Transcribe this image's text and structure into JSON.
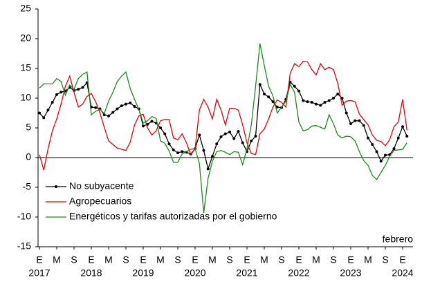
{
  "chart_data": {
    "type": "line",
    "categories": [
      "E",
      null,
      null,
      null,
      "M",
      null,
      null,
      null,
      "S",
      null,
      null,
      null,
      "E",
      null,
      null,
      null,
      "M",
      null,
      null,
      null,
      "S",
      null,
      null,
      null,
      "E",
      null,
      null,
      null,
      "M",
      null,
      null,
      null,
      "S",
      null,
      null,
      null,
      "E",
      null,
      null,
      null,
      "M",
      null,
      null,
      null,
      "S",
      null,
      null,
      null,
      "E",
      null,
      null,
      null,
      "M",
      null,
      null,
      null,
      "S",
      null,
      null,
      null,
      "E",
      null,
      null,
      null,
      "M",
      null,
      null,
      null,
      "S",
      null,
      null,
      null,
      "E",
      null,
      null,
      null,
      "M",
      null,
      null,
      null,
      "S",
      null,
      null,
      null,
      "E",
      null
    ],
    "year_labels": [
      "2017",
      "2018",
      "2019",
      "2020",
      "2021",
      "2022",
      "2023",
      "2024"
    ],
    "annotation": "febrero",
    "ylim": [
      -15,
      25
    ],
    "yticks": [
      -15,
      -10,
      -5,
      0,
      5,
      10,
      15,
      20,
      25
    ],
    "grid": false,
    "legend": "lower left",
    "series": [
      {
        "name": "No subyacente",
        "color": "#000000",
        "markers": true,
        "values": [
          7.5,
          6.7,
          8.0,
          9.3,
          10.6,
          11.0,
          11.2,
          11.8,
          11.3,
          11.5,
          11.8,
          12.6,
          8.5,
          8.4,
          8.2,
          7.2,
          7.0,
          7.6,
          8.2,
          8.7,
          9.0,
          9.2,
          8.6,
          8.2,
          5.3,
          5.6,
          6.1,
          5.8,
          5.0,
          4.0,
          2.3,
          1.3,
          0.8,
          1.0,
          0.9,
          0.6,
          1.5,
          3.8,
          1.2,
          -1.9,
          0.2,
          2.3,
          3.5,
          4.0,
          4.3,
          3.2,
          4.4,
          2.5,
          1.0,
          2.8,
          3.6,
          12.3,
          10.7,
          10.2,
          9.4,
          8.5,
          8.4,
          9.8,
          12.7,
          12.0,
          11.2,
          9.6,
          9.4,
          9.3,
          9.0,
          8.8,
          9.3,
          9.6,
          10.0,
          10.7,
          10.0,
          7.5,
          5.7,
          6.2,
          6.2,
          5.4,
          3.3,
          2.2,
          1.0,
          -0.6,
          0.4,
          0.5,
          1.5,
          3.3,
          5.2,
          3.6
        ]
      },
      {
        "name": "Agropecuarios",
        "color": "#e8000b",
        "markers": false,
        "values": [
          0.5,
          -2.1,
          1.5,
          4.5,
          6.5,
          9.0,
          12.0,
          13.7,
          11.0,
          8.5,
          9.0,
          10.3,
          10.8,
          9.4,
          7.5,
          5.1,
          2.8,
          2.2,
          1.6,
          1.4,
          1.2,
          2.6,
          5.5,
          7.0,
          7.3,
          5.0,
          3.8,
          4.5,
          6.2,
          6.4,
          6.4,
          3.3,
          3.0,
          4.0,
          2.5,
          0.5,
          1.5,
          8.0,
          9.8,
          8.5,
          6.5,
          9.8,
          8.0,
          5.5,
          8.3,
          8.3,
          8.0,
          5.5,
          2.5,
          0.7,
          0.5,
          4.0,
          4.8,
          6.5,
          8.5,
          9.7,
          9.3,
          8.5,
          14.2,
          15.8,
          15.3,
          16.2,
          16.1,
          14.8,
          13.9,
          15.8,
          14.8,
          15.2,
          14.8,
          12.5,
          8.8,
          9.5,
          9.6,
          9.4,
          7.3,
          6.4,
          5.5,
          3.8,
          2.9,
          2.7,
          2.0,
          3.0,
          5.2,
          6.0,
          9.8,
          4.6
        ]
      },
      {
        "name": "Energéticos y tarifas autorizadas por el gobierno",
        "color": "#1a8a1a",
        "markers": false,
        "values": [
          11.7,
          12.4,
          12.4,
          12.4,
          13.3,
          12.8,
          10.5,
          12.2,
          11.5,
          13.3,
          14.0,
          14.4,
          7.2,
          7.8,
          8.1,
          7.4,
          9.5,
          11.0,
          12.8,
          13.7,
          14.4,
          11.6,
          9.8,
          8.1,
          5.8,
          6.2,
          6.9,
          6.6,
          2.8,
          2.4,
          1.1,
          -0.8,
          -0.8,
          0.6,
          1.0,
          1.4,
          1.5,
          -1.0,
          -9.3,
          -3.5,
          -0.6,
          1.0,
          1.2,
          0.9,
          0.5,
          1.0,
          0.9,
          -1.2,
          1.5,
          5.5,
          12.0,
          19.2,
          15.5,
          12.0,
          10.4,
          7.5,
          8.5,
          9.5,
          12.3,
          11.0,
          6.0,
          4.5,
          4.7,
          5.3,
          5.4,
          5.1,
          4.8,
          7.2,
          5.7,
          3.8,
          3.3,
          3.6,
          3.5,
          2.8,
          1.0,
          -0.5,
          -1.3,
          -3.0,
          -3.7,
          -2.5,
          -1.3,
          0.2,
          1.2,
          1.3,
          1.4,
          2.5
        ]
      }
    ]
  }
}
